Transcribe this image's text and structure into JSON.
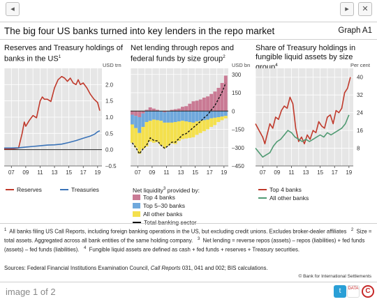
{
  "toolbar": {
    "back_icon": "◂",
    "forward_icon": "▸",
    "close_icon": "✕"
  },
  "figure": {
    "title": "The big four US banks turned into key lenders in the repo market",
    "label": "Graph A1"
  },
  "panels": [
    {
      "title_line1": "Reserves and Treasury holdings of",
      "title_line2": "banks in the US",
      "title_sup": "1",
      "unit": "USD trn"
    },
    {
      "title_line1": "Net lending through repos and",
      "title_line2": "federal funds by size group",
      "title_sup": "2",
      "unit": "USD bn"
    },
    {
      "title_line1": "Share of Treasury holdings in",
      "title_line2": "fungible liquid assets by size group",
      "title_sup": "4",
      "unit": "Per cent"
    }
  ],
  "chart_data": [
    {
      "type": "line",
      "title": "Reserves and Treasury holdings of banks in the US",
      "ylabel": "USD trn",
      "ylim": [
        -0.5,
        2.5
      ],
      "yticks": [
        -0.5,
        0.0,
        0.5,
        1.0,
        1.5,
        2.0
      ],
      "ytick_labels": [
        "–0.5",
        "0.0",
        "0.5",
        "1.0",
        "1.5",
        "2.0"
      ],
      "xlim": [
        2006,
        2019.6
      ],
      "xticks": [
        2007,
        2009,
        2011,
        2013,
        2015,
        2017,
        2019
      ],
      "xtick_labels": [
        "07",
        "09",
        "11",
        "13",
        "15",
        "17",
        "19"
      ],
      "legend_position": "bottom",
      "series": [
        {
          "name": "Reserves",
          "color": "#c0392b",
          "x": [
            2006.0,
            2007.0,
            2008.0,
            2008.5,
            2008.8,
            2009.0,
            2009.5,
            2010.0,
            2010.5,
            2011.0,
            2011.3,
            2011.6,
            2012.0,
            2012.5,
            2013.0,
            2013.5,
            2014.0,
            2014.4,
            2014.8,
            2015.2,
            2015.6,
            2016.0,
            2016.3,
            2016.6,
            2017.0,
            2017.5,
            2018.0,
            2018.5,
            2019.0,
            2019.3
          ],
          "y": [
            0.02,
            0.02,
            0.05,
            0.5,
            0.85,
            0.72,
            0.9,
            1.05,
            0.98,
            1.5,
            1.62,
            1.55,
            1.55,
            1.48,
            1.9,
            2.15,
            2.25,
            2.2,
            2.1,
            2.2,
            2.05,
            2.0,
            2.15,
            2.0,
            2.05,
            1.9,
            1.7,
            1.55,
            1.45,
            1.2
          ]
        },
        {
          "name": "Treasuries",
          "color": "#3a73b8",
          "x": [
            2006.0,
            2007.0,
            2008.0,
            2009.0,
            2010.0,
            2011.0,
            2012.0,
            2013.0,
            2014.0,
            2015.0,
            2016.0,
            2017.0,
            2018.0,
            2018.6,
            2019.0,
            2019.3
          ],
          "y": [
            0.05,
            0.05,
            0.06,
            0.08,
            0.1,
            0.12,
            0.14,
            0.15,
            0.17,
            0.22,
            0.28,
            0.35,
            0.42,
            0.48,
            0.55,
            0.58
          ]
        }
      ]
    },
    {
      "type": "bar",
      "title": "Net lending through repos and federal funds by size group",
      "ylabel": "USD bn",
      "ylim": [
        -450,
        350
      ],
      "yticks": [
        -450,
        -300,
        -150,
        0,
        150,
        300
      ],
      "ytick_labels": [
        "–450",
        "–300",
        "–150",
        "0",
        "150",
        "300"
      ],
      "xlim": [
        2006,
        2019.6
      ],
      "xticks": [
        2007,
        2009,
        2011,
        2013,
        2015,
        2017,
        2019
      ],
      "xtick_labels": [
        "07",
        "09",
        "11",
        "13",
        "15",
        "17",
        "19"
      ],
      "legend_title": "Net liquidity",
      "legend_title_sup": "3",
      "legend_title_suffix": "provided by:",
      "legend_position": "bottom",
      "x": [
        2006.0,
        2006.5,
        2007.0,
        2007.5,
        2008.0,
        2008.5,
        2009.0,
        2009.5,
        2010.0,
        2010.5,
        2011.0,
        2011.5,
        2012.0,
        2012.5,
        2013.0,
        2013.5,
        2014.0,
        2014.5,
        2015.0,
        2015.5,
        2016.0,
        2016.5,
        2017.0,
        2017.5,
        2018.0,
        2018.5,
        2019.0
      ],
      "series": [
        {
          "name": "Top 4 banks",
          "color": "#c97a94",
          "kind": "bar",
          "values": [
            -30,
            -40,
            -50,
            -20,
            10,
            30,
            20,
            10,
            0,
            -10,
            -5,
            10,
            15,
            20,
            35,
            40,
            60,
            80,
            85,
            95,
            110,
            120,
            140,
            160,
            190,
            230,
            290
          ]
        },
        {
          "name": "Top 5–30 banks",
          "color": "#6fa8dc",
          "kind": "bar",
          "values": [
            -80,
            -100,
            -130,
            -110,
            -90,
            -80,
            -70,
            -75,
            -80,
            -85,
            -90,
            -95,
            -90,
            -85,
            -80,
            -85,
            -90,
            -95,
            -85,
            -80,
            -75,
            -70,
            -60,
            -55,
            -50,
            -45,
            -40
          ]
        },
        {
          "name": "All other banks",
          "color": "#f4e04d",
          "kind": "bar",
          "values": [
            -150,
            -160,
            -170,
            -180,
            -200,
            -170,
            -190,
            -180,
            -200,
            -210,
            -190,
            -170,
            -180,
            -160,
            -150,
            -140,
            -130,
            -120,
            -110,
            -100,
            -90,
            -80,
            -70,
            -60,
            -40,
            -30,
            -20
          ]
        },
        {
          "name": "Total banking sector",
          "color": "#111111",
          "kind": "dashed-line",
          "values": [
            -260,
            -300,
            -350,
            -310,
            -280,
            -220,
            -240,
            -245,
            -280,
            -305,
            -285,
            -255,
            -255,
            -225,
            -195,
            -185,
            -160,
            -135,
            -110,
            -85,
            -55,
            -30,
            10,
            45,
            100,
            155,
            230
          ]
        }
      ]
    },
    {
      "type": "line",
      "title": "Share of Treasury holdings in fungible liquid assets by size group",
      "ylabel": "Per cent",
      "ylim": [
        0,
        44
      ],
      "yticks": [
        8,
        16,
        24,
        32,
        40
      ],
      "ytick_labels": [
        "8",
        "16",
        "24",
        "32",
        "40"
      ],
      "xlim": [
        2006,
        2019.6
      ],
      "xticks": [
        2007,
        2009,
        2011,
        2013,
        2015,
        2017,
        2019
      ],
      "xtick_labels": [
        "07",
        "09",
        "11",
        "13",
        "15",
        "17",
        "19"
      ],
      "legend_position": "bottom",
      "series": [
        {
          "name": "Top 4 banks",
          "color": "#c0392b",
          "x": [
            2006.0,
            2006.5,
            2007.0,
            2007.3,
            2007.6,
            2008.0,
            2008.4,
            2008.8,
            2009.2,
            2009.6,
            2010.0,
            2010.4,
            2010.8,
            2011.2,
            2011.6,
            2012.0,
            2012.4,
            2012.8,
            2013.2,
            2013.6,
            2014.0,
            2014.4,
            2014.8,
            2015.2,
            2015.6,
            2016.0,
            2016.4,
            2016.8,
            2017.2,
            2017.6,
            2018.0,
            2018.4,
            2018.8,
            2019.2
          ],
          "y": [
            19,
            16,
            13,
            10,
            14,
            19,
            17,
            22,
            21,
            25,
            27,
            26,
            31,
            28,
            17,
            11,
            13,
            10,
            14,
            12,
            16,
            15,
            20,
            18,
            17,
            22,
            23,
            19,
            25,
            24,
            26,
            33,
            35,
            40
          ]
        },
        {
          "name": "All other banks",
          "color": "#4f9a72",
          "x": [
            2006.0,
            2006.5,
            2007.0,
            2007.5,
            2008.0,
            2008.5,
            2009.0,
            2009.5,
            2010.0,
            2010.5,
            2011.0,
            2011.5,
            2012.0,
            2012.5,
            2013.0,
            2013.5,
            2014.0,
            2014.5,
            2015.0,
            2015.5,
            2016.0,
            2016.5,
            2017.0,
            2017.5,
            2018.0,
            2018.5,
            2019.0
          ],
          "y": [
            8,
            6,
            4,
            5,
            6,
            9,
            11,
            12,
            14,
            16,
            15,
            13,
            12,
            11,
            12,
            11,
            12,
            13,
            14,
            13,
            15,
            14,
            15,
            16,
            17,
            19,
            23
          ]
        }
      ]
    }
  ],
  "notes": {
    "n1": "All banks filing US Call Reports, including foreign banking operations in the US, but excluding credit unions. Excludes broker-dealer affiliates",
    "n2": "Size = total assets. Aggregated across all bank entities of the same holding company.",
    "n3": "Net lending = reverse repos (assets) – repos (liabilities) + fed funds (assets) – fed funds (liabilities).",
    "n4": "Fungible liquid assets are defined as cash + fed funds + reserves + Treasury securities."
  },
  "sources": {
    "prefix": "Sources: Federal Financial Institutions Examination Council, ",
    "italic": "Call Reports",
    "suffix": " 031, 041 and 002; BIS calculations."
  },
  "copyright": "© Bank for International Settlements",
  "pager": "image 1 of 2",
  "share": {
    "twitter": "t",
    "data": "DATA",
    "c": "C"
  }
}
